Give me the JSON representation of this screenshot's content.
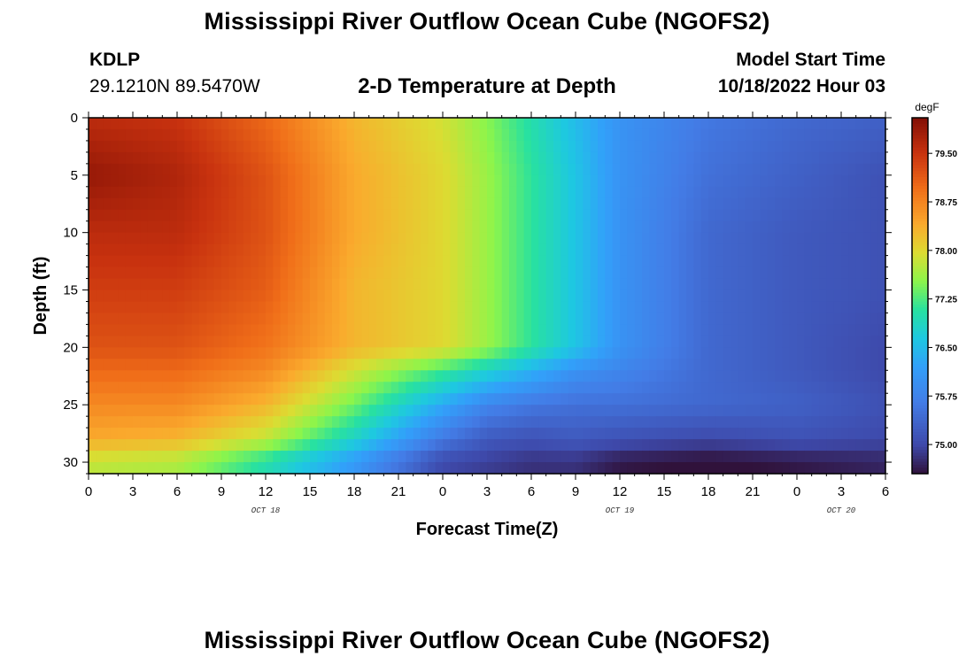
{
  "header": {
    "title": "Mississippi River Outflow Ocean Cube (NGOFS2)",
    "station": "KDLP",
    "coordinates": "29.1210N  89.5470W",
    "subtitle": "2-D Temperature at Depth",
    "model_start_label": "Model Start Time",
    "model_start_value": "10/18/2022 Hour 03"
  },
  "footer": {
    "title": "Mississippi River Outflow Ocean Cube (NGOFS2)"
  },
  "chart_data": {
    "type": "heatmap",
    "title": "2-D Temperature at Depth",
    "xlabel": "Forecast Time(Z)",
    "ylabel": "Depth (ft)",
    "x_unit": "hours since 10/18 00Z",
    "x_range": [
      0,
      54
    ],
    "x_tick_values": [
      0,
      3,
      6,
      9,
      12,
      15,
      18,
      21,
      24,
      27,
      30,
      33,
      36,
      39,
      42,
      45,
      48,
      51,
      54
    ],
    "x_tick_labels": [
      "0",
      "3",
      "6",
      "9",
      "12",
      "15",
      "18",
      "21",
      "0",
      "3",
      "6",
      "9",
      "12",
      "15",
      "18",
      "21",
      "0",
      "3",
      "6"
    ],
    "date_labels": [
      {
        "label": "OCT 18",
        "x": 12
      },
      {
        "label": "OCT 19",
        "x": 36
      },
      {
        "label": "OCT 20",
        "x": 51
      }
    ],
    "y_range": [
      0,
      31
    ],
    "y_inverted": true,
    "y_ticks": [
      0,
      5,
      10,
      15,
      20,
      25,
      30
    ],
    "colorbar": {
      "unit": "degF",
      "min": 74.55,
      "max": 80.05,
      "ticks": [
        75.0,
        75.75,
        76.5,
        77.25,
        78.0,
        78.75,
        79.5
      ],
      "tick_labels": [
        "75.00",
        "75.75",
        "76.50",
        "77.25",
        "78.00",
        "78.75",
        "79.50"
      ]
    },
    "grid_samples": {
      "description": "temperature (degF) sampled at depth rows x forecast hour columns",
      "hours": [
        0,
        6,
        12,
        18,
        24,
        27,
        30,
        33,
        36,
        42,
        48,
        54
      ],
      "depths": [
        0,
        5,
        10,
        15,
        20,
        22,
        25,
        28,
        30
      ],
      "values": [
        [
          79.6,
          79.5,
          79.0,
          78.3,
          77.9,
          77.5,
          77.0,
          76.5,
          76.0,
          75.6,
          75.4,
          75.3
        ],
        [
          79.9,
          79.7,
          79.2,
          78.4,
          78.0,
          77.6,
          77.1,
          76.6,
          76.0,
          75.5,
          75.3,
          75.1
        ],
        [
          79.6,
          79.6,
          79.2,
          78.4,
          78.0,
          77.6,
          77.1,
          76.6,
          76.0,
          75.4,
          75.2,
          75.1
        ],
        [
          79.4,
          79.4,
          79.1,
          78.3,
          78.0,
          77.6,
          77.1,
          76.6,
          76.0,
          75.4,
          75.2,
          75.1
        ],
        [
          79.2,
          79.2,
          78.9,
          78.3,
          78.0,
          77.6,
          77.1,
          76.6,
          76.0,
          75.4,
          75.2,
          75.0
        ],
        [
          79.0,
          79.0,
          78.7,
          77.9,
          77.2,
          76.8,
          76.4,
          76.0,
          75.8,
          75.4,
          75.2,
          75.0
        ],
        [
          78.7,
          78.7,
          78.3,
          77.4,
          76.3,
          75.8,
          75.6,
          75.5,
          75.5,
          75.4,
          75.3,
          75.1
        ],
        [
          78.4,
          78.3,
          77.8,
          76.8,
          75.6,
          75.2,
          75.1,
          75.2,
          75.1,
          75.0,
          75.1,
          75.0
        ],
        [
          77.8,
          77.7,
          77.0,
          76.1,
          75.0,
          74.9,
          74.8,
          74.8,
          74.6,
          74.5,
          74.6,
          74.7
        ]
      ]
    }
  }
}
